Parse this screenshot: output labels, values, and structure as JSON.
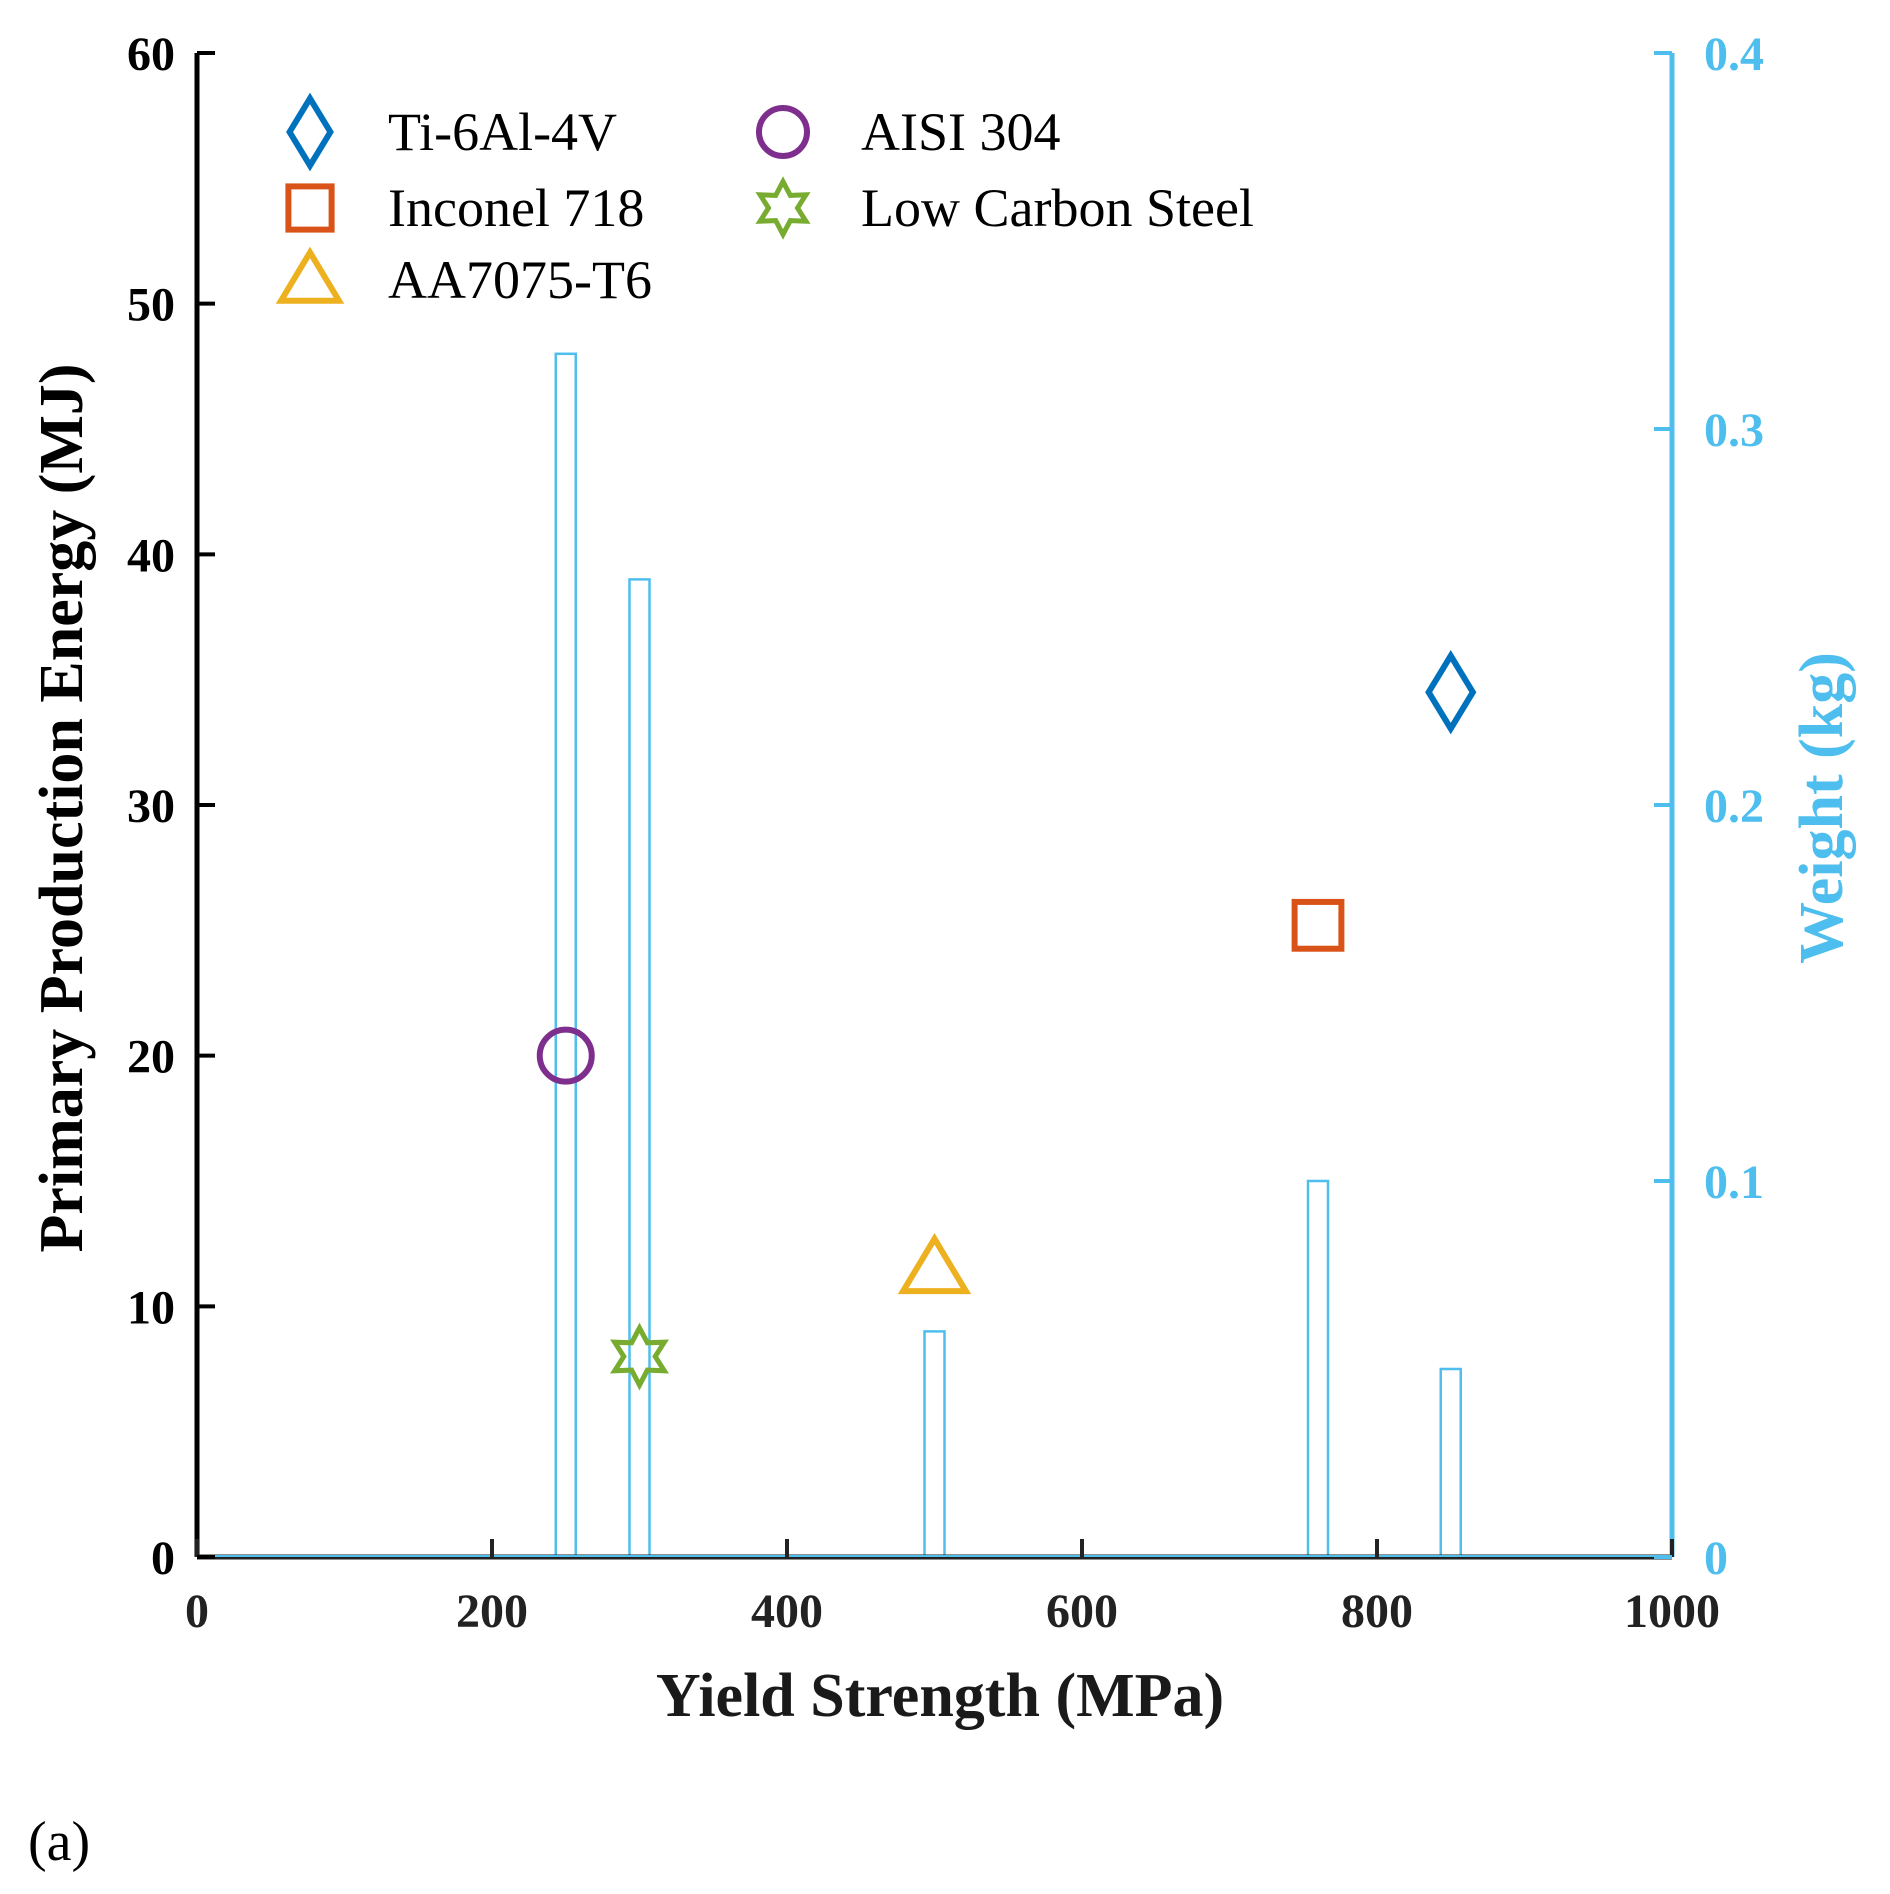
{
  "chart_data": {
    "type": "scatter",
    "xlabel": "Yield Strength (MPa)",
    "ylabel": "Primary Production Energy (MJ)",
    "y2label": "Weight (kg)",
    "xlim": [
      0,
      1000
    ],
    "ylim": [
      0,
      60
    ],
    "y2lim": [
      0,
      0.4
    ],
    "xticks": [
      "0",
      "200",
      "400",
      "600",
      "800",
      "1000"
    ],
    "yticks": [
      "0",
      "10",
      "20",
      "30",
      "40",
      "50",
      "60"
    ],
    "y2ticks": [
      "0",
      "0.1",
      "0.2",
      "0.3",
      "0.4"
    ],
    "legend_position": "top-left",
    "grid": false,
    "series": [
      {
        "name": "Ti-6Al-4V",
        "marker": "diamond",
        "color": "#0072BD",
        "x": 850,
        "y": 34.5
      },
      {
        "name": "AISI 304",
        "marker": "circle",
        "color": "#7E2F8E",
        "x": 250,
        "y": 20
      },
      {
        "name": "Inconel 718",
        "marker": "square",
        "color": "#D95319",
        "x": 760,
        "y": 25.2
      },
      {
        "name": "Low Carbon Steel",
        "marker": "hexagram",
        "color": "#77AC30",
        "x": 300,
        "y": 8
      },
      {
        "name": "AA7075-T6",
        "marker": "triangle",
        "color": "#EDB120",
        "x": 500,
        "y": 11.5
      }
    ],
    "weight_bars": {
      "axis": "right",
      "color": "#4DBEEE",
      "x": [
        250,
        300,
        500,
        760,
        850
      ],
      "values": [
        0.32,
        0.26,
        0.06,
        0.1,
        0.05
      ]
    }
  },
  "colors": {
    "left_axis": "#000000",
    "right_axis": "#4DBEEE"
  },
  "panel_label": "(a)"
}
